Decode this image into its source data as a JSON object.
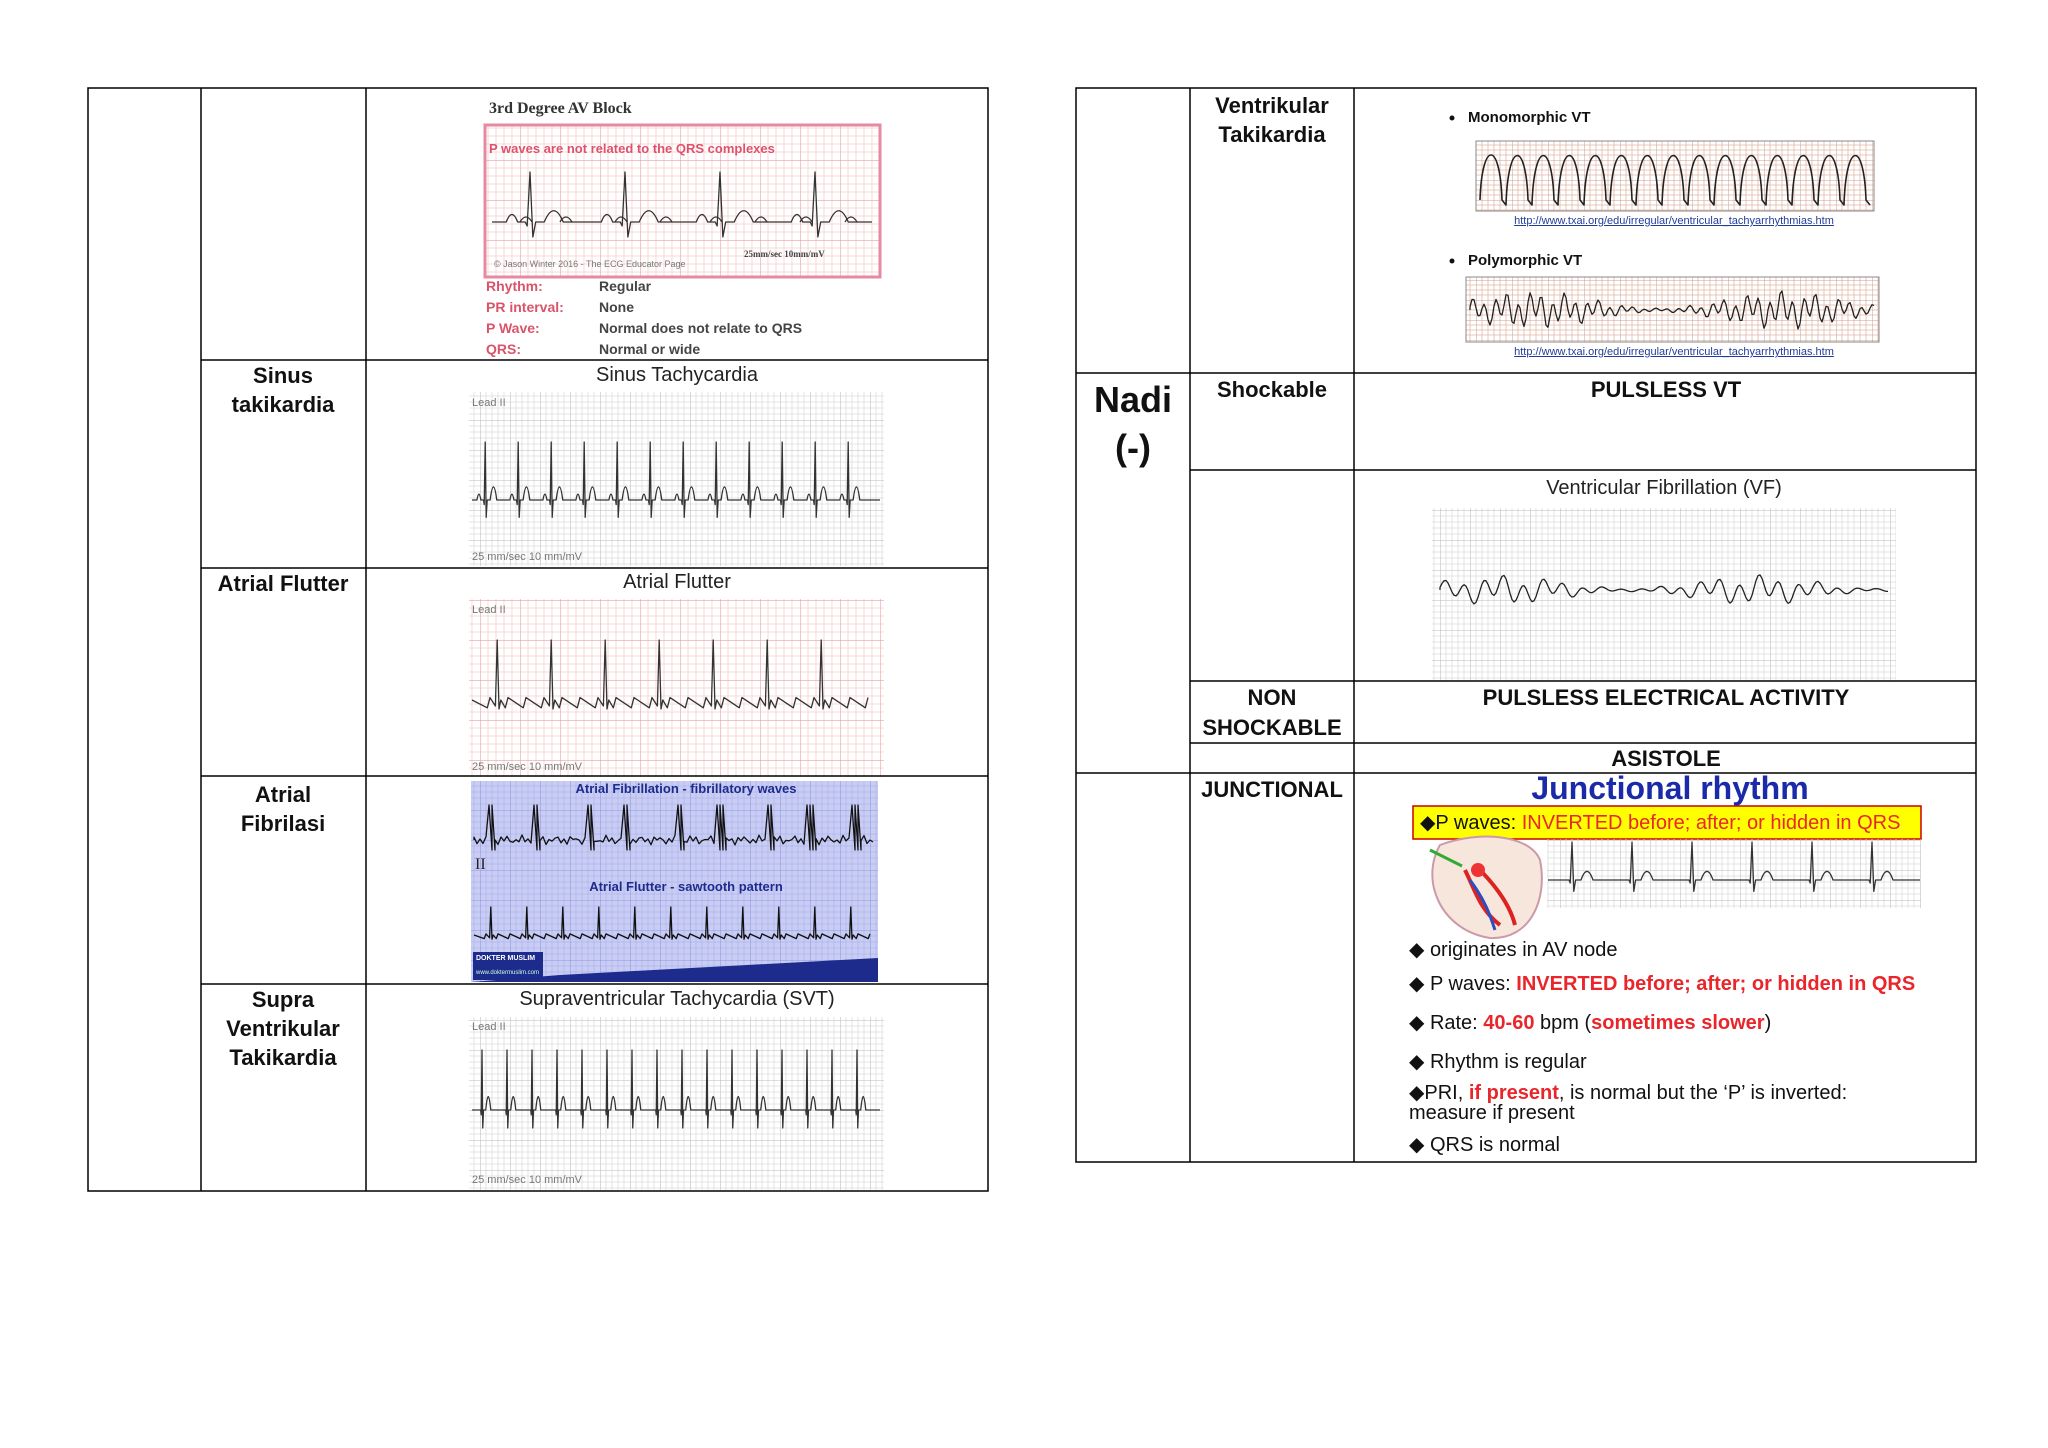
{
  "left_table": {
    "rows": [
      {
        "image": {
          "title": "3rd Degree AV Block",
          "caption": "P waves are not related to the QRS complexes",
          "credit": "© Jason Winter 2016 - The ECG Educator Page",
          "scale": "25mm/sec 10mm/mV",
          "details": [
            {
              "term": "Rhythm:",
              "value": "Regular"
            },
            {
              "term": "PR interval:",
              "value": "None"
            },
            {
              "term": "P Wave:",
              "value": "Normal does not relate to QRS"
            },
            {
              "term": "QRS:",
              "value": "Normal or wide"
            }
          ]
        }
      },
      {
        "label": [
          "Sinus",
          "takikardia"
        ],
        "image": {
          "title": "Sinus Tachycardia",
          "lead": "Lead II",
          "scale": "25 mm/sec 10 mm/mV"
        }
      },
      {
        "label": [
          "Atrial Flutter"
        ],
        "image": {
          "title": "Atrial Flutter",
          "lead": "Lead II",
          "scale": "25 mm/sec 10 mm/mV"
        }
      },
      {
        "label": [
          "Atrial",
          "Fibrilasi"
        ],
        "image": {
          "title": "Atrial Fibrillation - fibrillatory waves",
          "subtitle": "Atrial Flutter - sawtooth pattern",
          "lead": "II",
          "logo": "DOKTER MUSLIM",
          "url": "www.doktermuslim.com"
        }
      },
      {
        "label": [
          "Supra",
          "Ventrikular",
          "Takikardia"
        ],
        "image": {
          "title": "Supraventricular Tachycardia (SVT)",
          "lead": "Lead II",
          "scale": "25 mm/sec 10 mm/mV"
        }
      }
    ]
  },
  "right_table": {
    "vt": {
      "label": [
        "Ventrikular",
        "Takikardia"
      ],
      "items": [
        {
          "name": "Monomorphic VT",
          "url": "http://www.txai.org/edu/irregular/ventricular_tachyarrhythmias.htm"
        },
        {
          "name": "Polymorphic VT",
          "url": "http://www.txai.org/edu/irregular/ventricular_tachyarrhythmias.htm"
        }
      ]
    },
    "pulse": [
      "Nadi",
      "(-)"
    ],
    "shockable": {
      "label": "Shockable",
      "rhythm": "PULSLESS VT"
    },
    "vf": {
      "title": "Ventricular Fibrillation (VF)"
    },
    "non_shockable": {
      "label": [
        "NON",
        "SHOCKABLE"
      ],
      "rhythms": [
        "PULSLESS ELECTRICAL ACTIVITY",
        "ASISTOLE"
      ]
    },
    "junctional": {
      "label": "JUNCTIONAL",
      "title": "Junctional rhythm",
      "banner": [
        {
          "text": "◆P waves: "
        },
        {
          "text": "INVERTED before; after; or hidden in QRS",
          "color": "#e8262b"
        }
      ],
      "bullets": [
        [
          {
            "text": "◆ originates in AV node"
          }
        ],
        [
          {
            "text": "◆ P waves: "
          },
          {
            "text": "INVERTED",
            "color": "#e8262b"
          },
          {
            "text": " before; after; or hidden in QRS",
            "color": "#e8262b"
          }
        ],
        [
          {
            "text": "◆ Rate: "
          },
          {
            "text": "40-60",
            "color": "#e8262b"
          },
          {
            "text": " bpm ("
          },
          {
            "text": "sometimes slower",
            "color": "#e8262b"
          },
          {
            "text": ")"
          }
        ],
        [
          {
            "text": "◆ Rhythm is regular"
          }
        ],
        [
          {
            "text": "◆PRI, "
          },
          {
            "text": "if present",
            "color": "#e8262b"
          },
          {
            "text": ", is normal but the ‘P’ is inverted: measure if present"
          }
        ],
        [
          {
            "text": "◆ QRS is normal"
          }
        ]
      ]
    }
  }
}
